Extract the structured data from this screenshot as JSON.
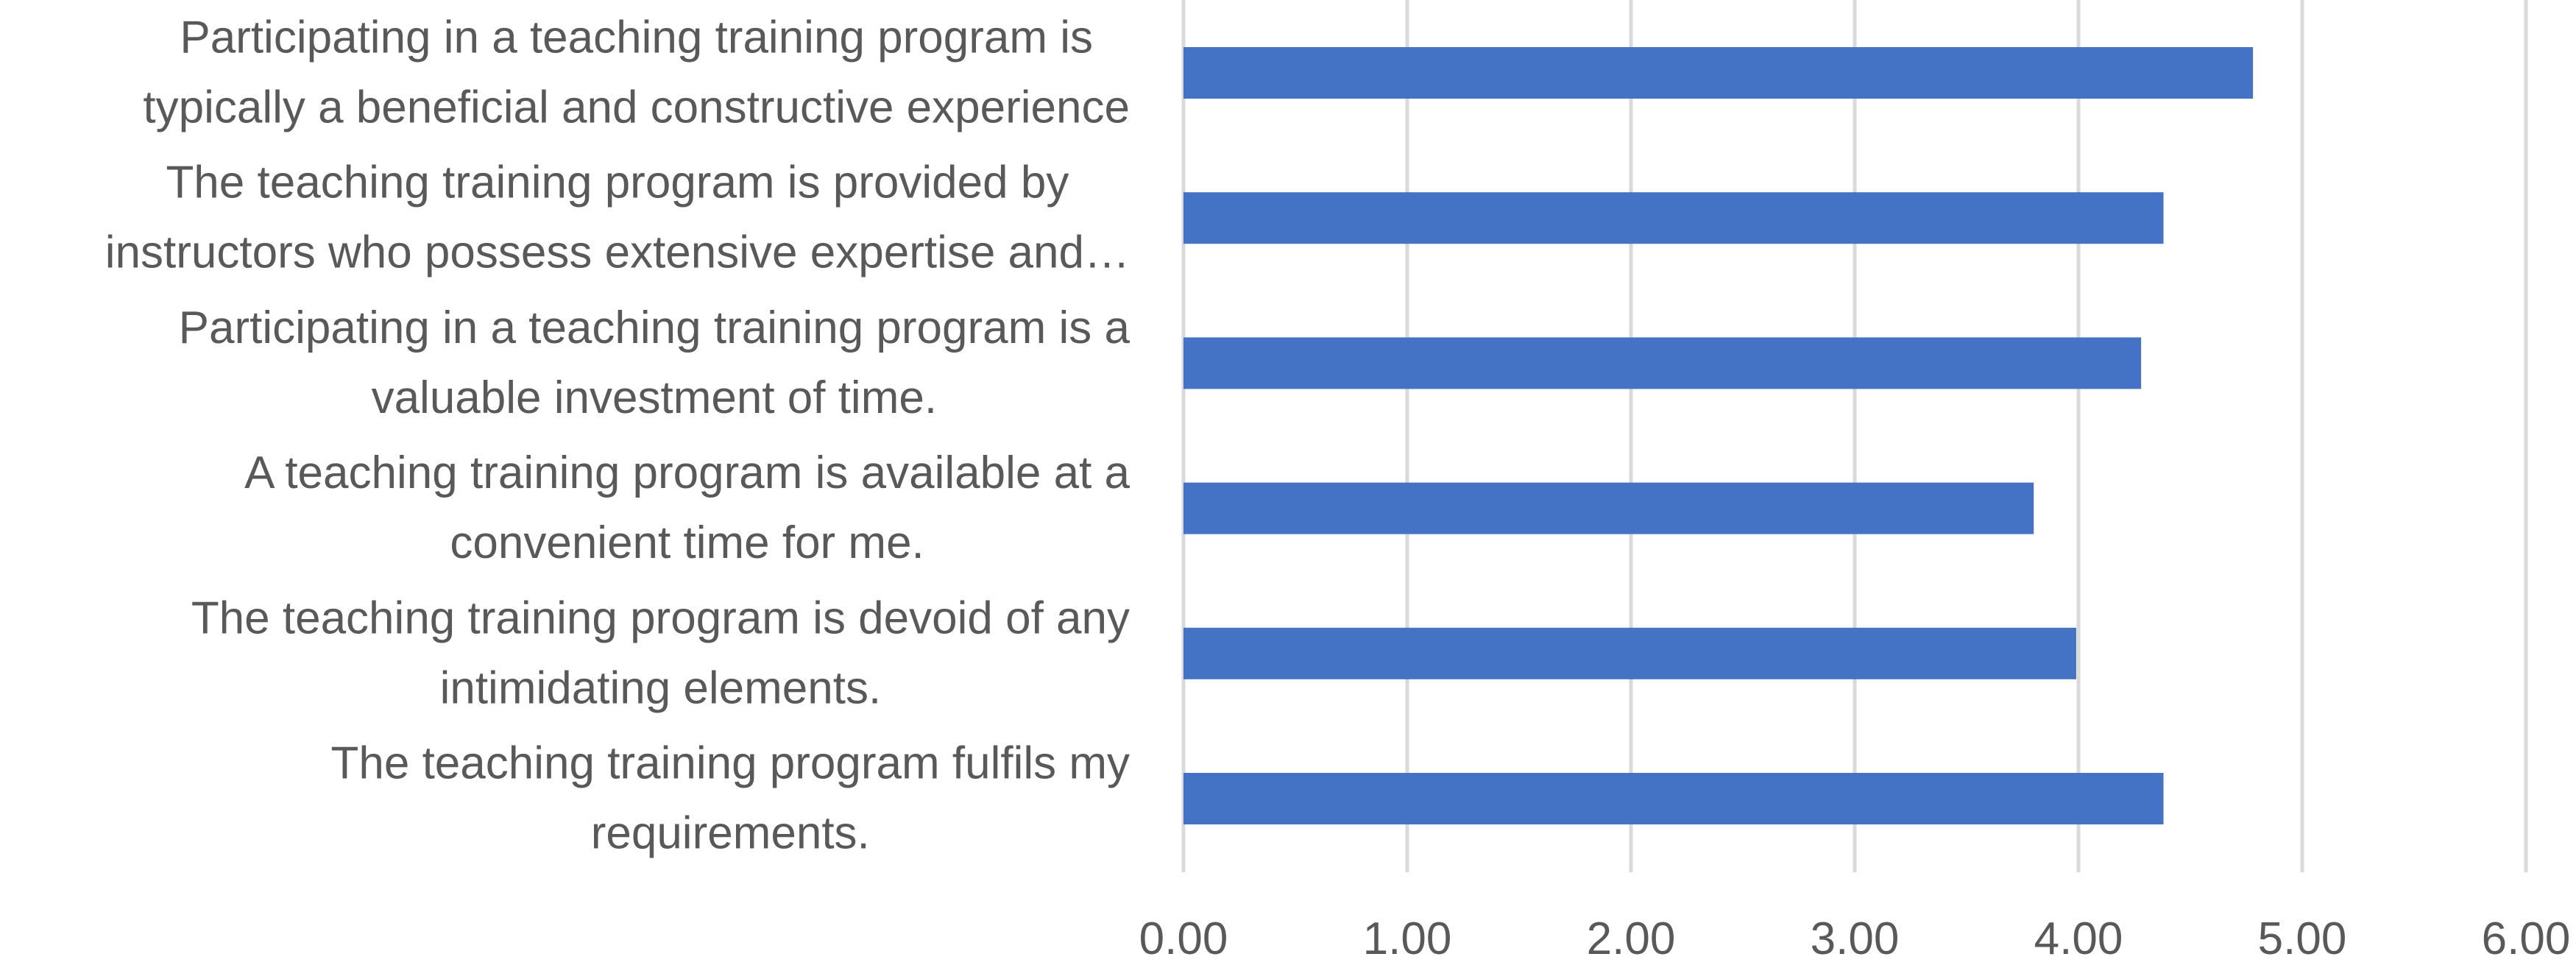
{
  "chart_data": {
    "type": "bar",
    "orientation": "horizontal",
    "categories": [
      [
        "Participating in a teaching training program is",
        "typically a beneficial and constructive experience"
      ],
      [
        "The teaching training program is provided by",
        "instructors who possess extensive expertise and…"
      ],
      [
        "Participating in a teaching training program is a",
        "valuable investment of time."
      ],
      [
        "A teaching training program is available at a",
        "convenient time for me."
      ],
      [
        "The teaching training program is devoid of any",
        "intimidating elements."
      ],
      [
        "The teaching training program fulfils my",
        "requirements."
      ]
    ],
    "values": [
      4.78,
      4.38,
      4.28,
      3.8,
      3.99,
      4.38
    ],
    "xlim": [
      0,
      6
    ],
    "xticks": [
      "0.00",
      "1.00",
      "2.00",
      "3.00",
      "4.00",
      "5.00",
      "6.00"
    ],
    "title": "",
    "xlabel": "",
    "ylabel": "",
    "grid": "vertical",
    "legend": "none",
    "colors": {
      "bar": "#4472c4",
      "grid": "#d9d9d9",
      "text": "#595959"
    }
  }
}
